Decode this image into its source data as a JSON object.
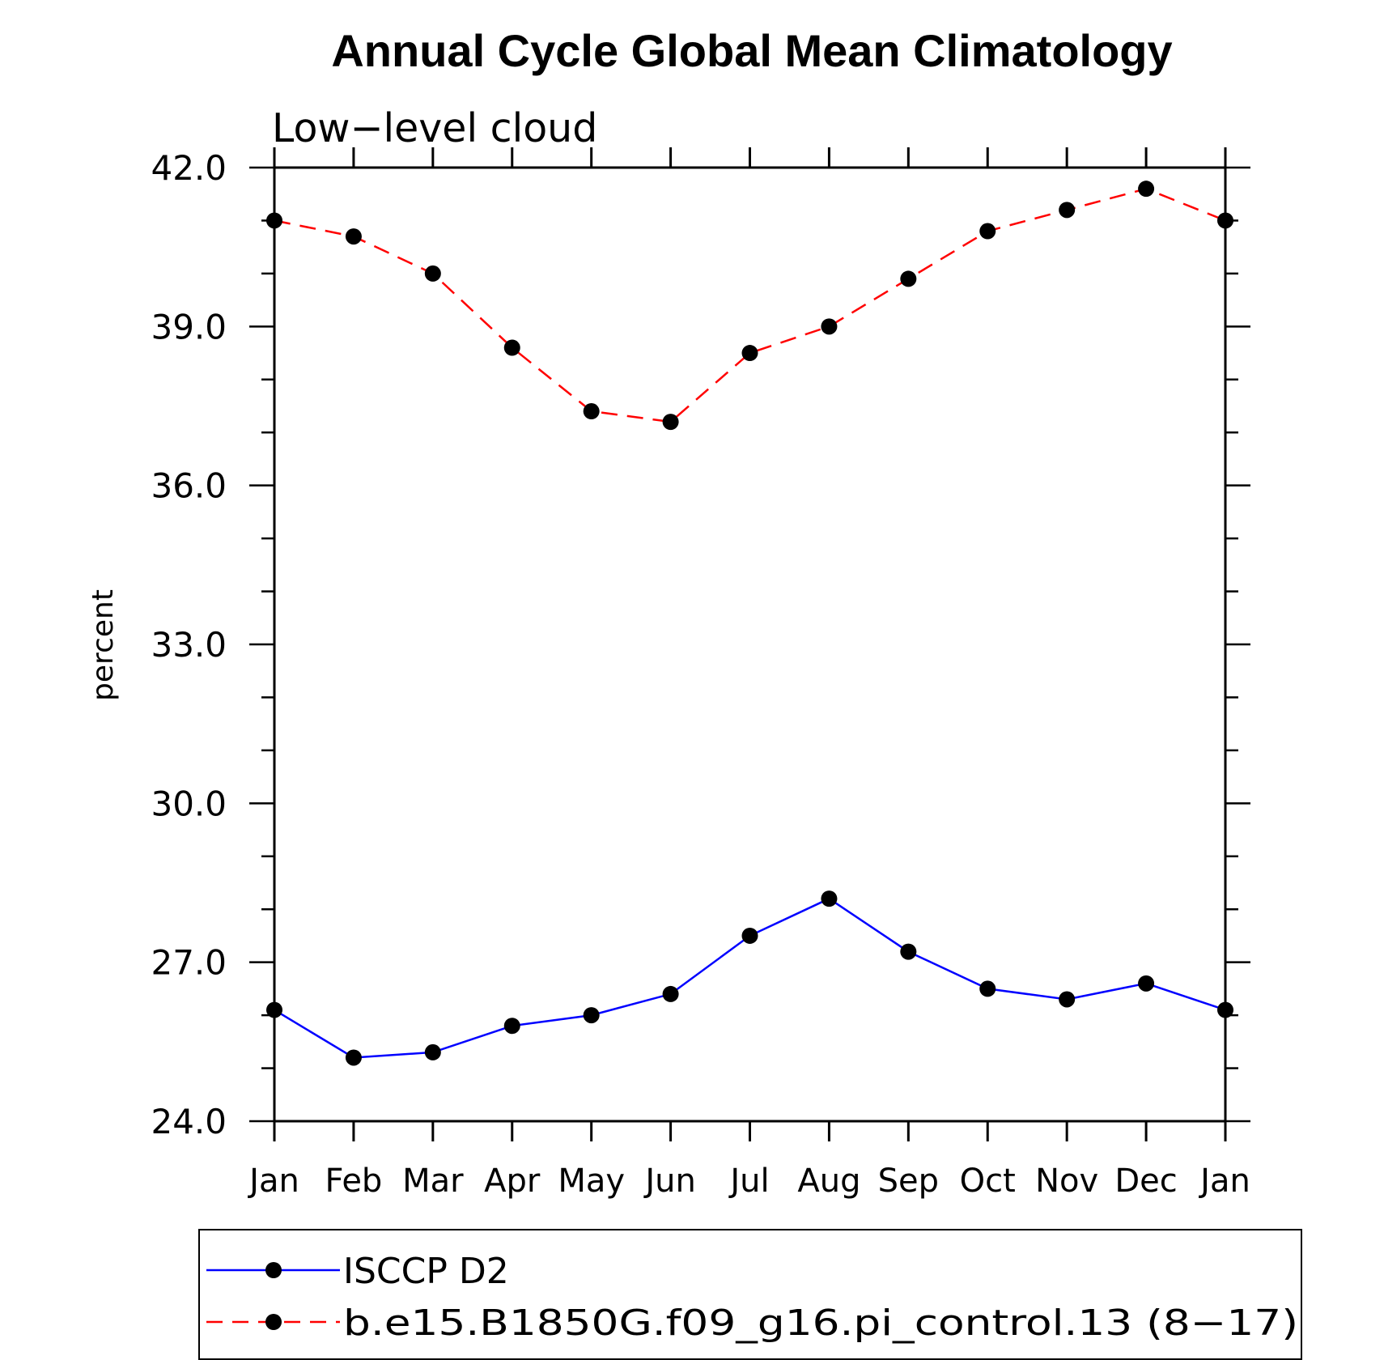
{
  "chart_data": {
    "type": "line",
    "title": "Annual Cycle Global Mean Climatology",
    "subtitle": "Low−level cloud",
    "ylabel": "percent",
    "xlabel": "",
    "categories": [
      "Jan",
      "Feb",
      "Mar",
      "Apr",
      "May",
      "Jun",
      "Jul",
      "Aug",
      "Sep",
      "Oct",
      "Nov",
      "Dec",
      "Jan"
    ],
    "ylim": [
      24.0,
      42.0
    ],
    "yticks": [
      "24.0",
      "27.0",
      "30.0",
      "33.0",
      "36.0",
      "39.0",
      "42.0"
    ],
    "grid": false,
    "legend_position": "bottom",
    "series": [
      {
        "name": "ISCCP D2",
        "color": "#0000ff",
        "line_style": "solid",
        "marker": "filled-circle",
        "values": [
          26.1,
          25.2,
          25.3,
          25.8,
          26.0,
          26.4,
          27.5,
          28.2,
          27.2,
          26.5,
          26.3,
          26.6,
          26.1
        ]
      },
      {
        "name": "b.e15.B1850G.f09_g16.pi_control.13 (8−17)",
        "color": "#ff0000",
        "line_style": "dashed",
        "marker": "filled-circle",
        "values": [
          41.0,
          40.7,
          40.0,
          38.6,
          37.4,
          37.2,
          38.5,
          39.0,
          39.9,
          40.8,
          41.2,
          41.6,
          41.0
        ]
      }
    ]
  }
}
